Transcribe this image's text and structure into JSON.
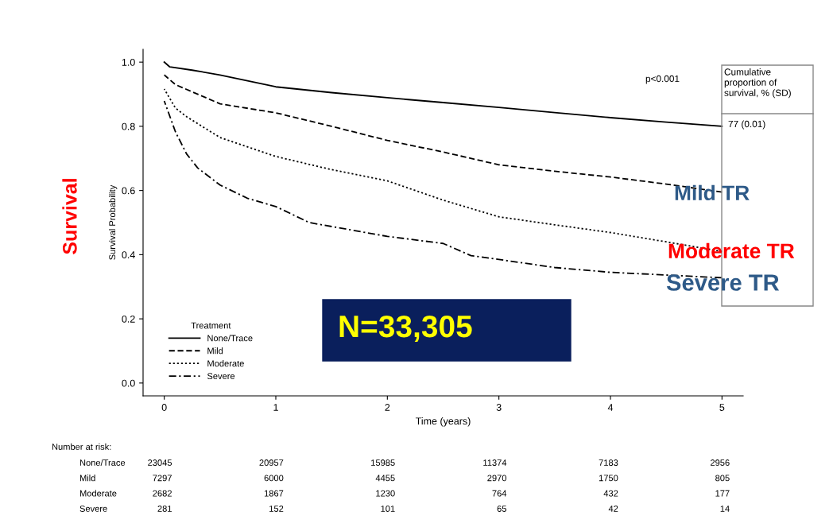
{
  "chart_data": {
    "type": "line",
    "xlabel": "Time (years)",
    "ylabel": "Survival Probability",
    "legend_title": "Treatment",
    "legend": "bottom left",
    "xlim": [
      -0.19,
      5.19
    ],
    "ylim": [
      -0.04,
      1.04
    ],
    "xticks": [
      0,
      1,
      2,
      3,
      4,
      5
    ],
    "yticks": [
      {
        "value": 0,
        "label": "0.0"
      },
      0.2,
      0.4,
      0.6,
      0.8,
      {
        "value": 1,
        "label": "1.0"
      }
    ],
    "grid": false,
    "marker": "none",
    "series": [
      {
        "name": "None/Trace",
        "color": "#000000",
        "line_style": "solid",
        "x": [
          0,
          0.05,
          0.25,
          0.5,
          1,
          1.5,
          2,
          2.5,
          3,
          3.5,
          4,
          4.5,
          5
        ],
        "values": [
          1.0,
          0.985,
          0.975,
          0.96,
          0.923,
          0.905,
          0.889,
          0.874,
          0.859,
          0.843,
          0.827,
          0.813,
          0.8
        ]
      },
      {
        "name": "Mild",
        "color": "#000000",
        "line_style": "dashed",
        "x": [
          0,
          0.1,
          0.5,
          1,
          1.5,
          2,
          2.5,
          3,
          3.5,
          4,
          4.5,
          5
        ],
        "values": [
          0.96,
          0.93,
          0.87,
          0.842,
          0.8,
          0.756,
          0.72,
          0.68,
          0.66,
          0.642,
          0.62,
          0.595
        ]
      },
      {
        "name": "Moderate",
        "color": "#000000",
        "line_style": "dotted",
        "x": [
          0,
          0.1,
          0.2,
          0.5,
          1,
          1.5,
          2,
          2.5,
          3,
          3.5,
          4,
          4.5,
          5
        ],
        "values": [
          0.916,
          0.857,
          0.83,
          0.765,
          0.706,
          0.665,
          0.63,
          0.57,
          0.518,
          0.493,
          0.469,
          0.44,
          0.41
        ]
      },
      {
        "name": "Severe",
        "color": "#000000",
        "line_style": "dashdot",
        "x": [
          0,
          0.1,
          0.2,
          0.3,
          0.5,
          0.75,
          1,
          1.3,
          2,
          2.5,
          2.75,
          3,
          3.5,
          4,
          5
        ],
        "values": [
          0.879,
          0.783,
          0.714,
          0.67,
          0.617,
          0.575,
          0.55,
          0.5,
          0.457,
          0.435,
          0.397,
          0.385,
          0.36,
          0.345,
          0.328
        ]
      }
    ],
    "annotations": [
      "p<0.001",
      "Cumulative\nproportion of\nsurvival, % (SD)",
      "77 (0.01)",
      "Mild TR",
      "Moderate TR",
      "Severe TR",
      "N=33,305",
      "Survival",
      "Number at risk:",
      "None/Trace",
      "23045",
      "20957",
      "15985",
      "11374",
      "7183",
      "2956",
      "Mild",
      "7297",
      "6000",
      "4455",
      "2970",
      "1750",
      "805",
      "Moderate",
      "2682",
      "1867",
      "1230",
      "764",
      "432",
      "177",
      "Severe",
      "281",
      "152",
      "101",
      "65",
      "42",
      "14"
    ]
  }
}
